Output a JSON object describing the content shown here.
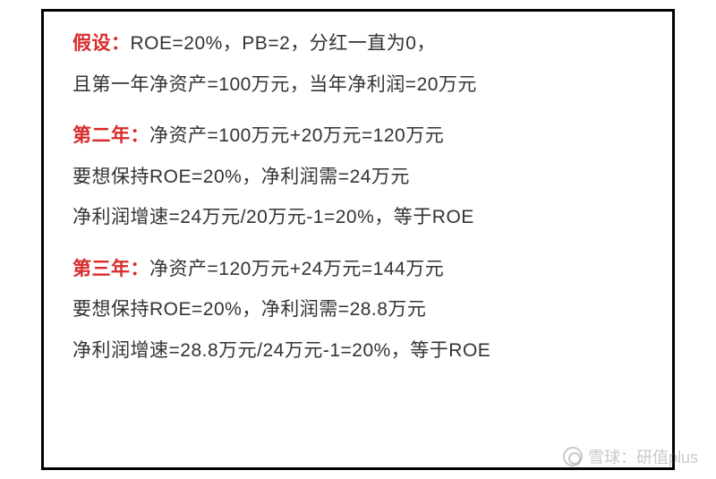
{
  "section1": {
    "label": "假设：",
    "line1_rest": "ROE=20%，PB=2，分红一直为0，",
    "line2": "且第一年净资产=100万元，当年净利润=20万元"
  },
  "section2": {
    "label": "第二年：",
    "line1_rest": "净资产=100万元+20万元=120万元",
    "line2": "要想保持ROE=20%，净利润需=24万元",
    "line3": "净利润增速=24万元/20万元-1=20%，等于ROE"
  },
  "section3": {
    "label": "第三年：",
    "line1_rest": "净资产=120万元+24万元=144万元",
    "line2": "要想保持ROE=20%，净利润需=28.8万元",
    "line3": "净利润增速=28.8万元/24万元-1=20%，等于ROE"
  },
  "watermark": {
    "text": "雪球：研值plus"
  },
  "colors": {
    "label_red": "#d92b2b",
    "text": "#333333",
    "border": "#000000",
    "background": "#ffffff"
  }
}
